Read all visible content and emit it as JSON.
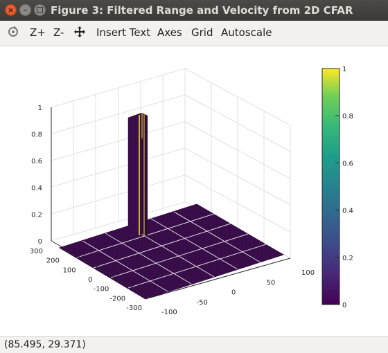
{
  "window": {
    "title": "Figure 3: Filtered Range and Velocity from 2D CFAR"
  },
  "toolbar": {
    "buttons": [
      {
        "id": "rotate",
        "icon": "rotate-icon"
      },
      {
        "id": "zoom-in",
        "label": "Z+"
      },
      {
        "id": "zoom-out",
        "label": "Z-"
      },
      {
        "id": "pan",
        "icon": "pan-icon"
      },
      {
        "id": "insert-text",
        "label": "Insert Text"
      },
      {
        "id": "axes",
        "label": "Axes"
      },
      {
        "id": "grid",
        "label": "Grid"
      },
      {
        "id": "autoscale",
        "label": "Autoscale"
      }
    ]
  },
  "status": {
    "coordinates": "(85.495, 29.371)"
  },
  "chart_data": {
    "type": "surface",
    "colormap": "viridis",
    "x_ticks": [
      "-100",
      "-50",
      "0",
      "50",
      "100"
    ],
    "y_ticks": [
      "300",
      "200",
      "100",
      "0",
      "-100",
      "-200",
      "-300"
    ],
    "z_ticks": [
      "0",
      "0.2",
      "0.4",
      "0.6",
      "0.8",
      "1"
    ],
    "colorbar_ticks": [
      "0",
      "0.2",
      "0.4",
      "0.6",
      "0.8",
      "1"
    ],
    "xlim": [
      -100,
      100
    ],
    "ylim": [
      -300,
      300
    ],
    "zlim": [
      0,
      1
    ],
    "grid": true,
    "peak": {
      "x": -50,
      "y": 250,
      "z": 1
    }
  }
}
